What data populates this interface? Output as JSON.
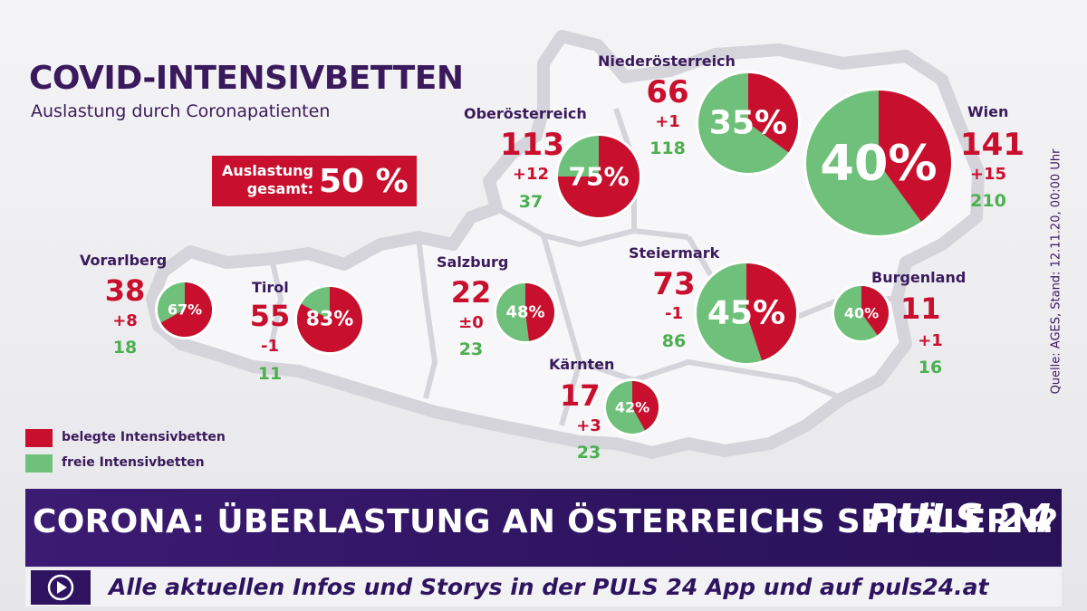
{
  "title": "COVID-INTENSIVBETTEN",
  "subtitle": "Auslastung durch Coronapatienten",
  "total": {
    "label_line1": "Auslastung",
    "label_line2": "gesamt:",
    "value": "50 %"
  },
  "colors": {
    "occupied": "#c8102e",
    "free": "#6fc07a",
    "accent_purple": "#3a1a5c",
    "banner": "#2e1460"
  },
  "regions": [
    {
      "name": "Vorarlberg",
      "occupied": "38",
      "delta": "+8",
      "free": "18",
      "percent": 67,
      "percent_label": "67%"
    },
    {
      "name": "Tirol",
      "occupied": "55",
      "delta": "-1",
      "free": "11",
      "percent": 83,
      "percent_label": "83%"
    },
    {
      "name": "Salzburg",
      "occupied": "22",
      "delta": "±0",
      "free": "23",
      "percent": 48,
      "percent_label": "48%"
    },
    {
      "name": "Oberösterreich",
      "occupied": "113",
      "delta": "+12",
      "free": "37",
      "percent": 75,
      "percent_label": "75%"
    },
    {
      "name": "Niederösterreich",
      "occupied": "66",
      "delta": "+1",
      "free": "118",
      "percent": 35,
      "percent_label": "35%"
    },
    {
      "name": "Wien",
      "occupied": "141",
      "delta": "+15",
      "free": "210",
      "percent": 40,
      "percent_label": "40%"
    },
    {
      "name": "Steiermark",
      "occupied": "73",
      "delta": "-1",
      "free": "86",
      "percent": 45,
      "percent_label": "45%"
    },
    {
      "name": "Burgenland",
      "occupied": "11",
      "delta": "+1",
      "free": "16",
      "percent": 40,
      "percent_label": "40%"
    },
    {
      "name": "Kärnten",
      "occupied": "17",
      "delta": "+3",
      "free": "23",
      "percent": 42,
      "percent_label": "42%"
    }
  ],
  "legend": {
    "occupied_label": "belegte Intensivbetten",
    "free_label": "freie Intensivbetten"
  },
  "source": "Quelle: AGES, Stand: 12.11.20, 00:00 Uhr",
  "banner": {
    "headline": "CORONA: ÜBERLASTUNG AN ÖSTERREICHS SPITÄLERN?",
    "brand": "PULS 24",
    "ticker": "Alle aktuellen Infos und Storys in der PULS 24 App und auf puls24.at",
    "play_icon": "play-circle-icon"
  }
}
